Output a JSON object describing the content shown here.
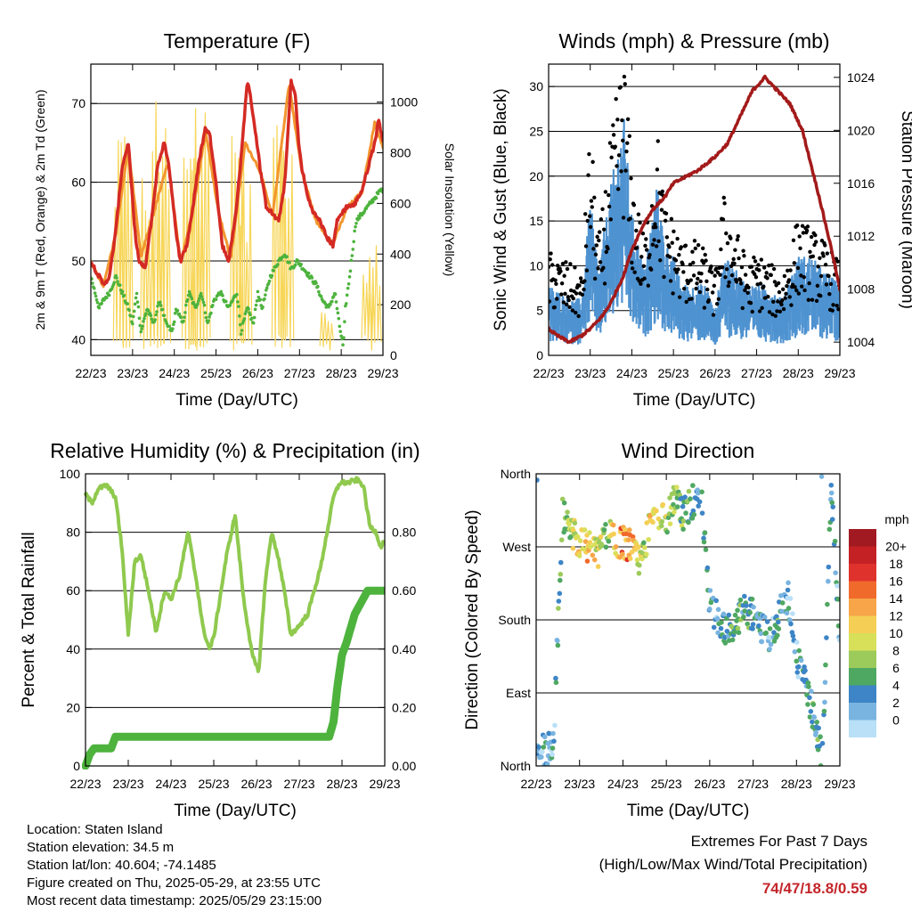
{
  "x_ticks": [
    "22/23",
    "23/23",
    "24/23",
    "25/23",
    "26/23",
    "27/23",
    "28/23",
    "29/23"
  ],
  "xlabel": "Time (Day/UTC)",
  "colors": {
    "t2": "#d42a24",
    "t9": "#f2962e",
    "td": "#4db33d",
    "solar": "#f7d659",
    "wind": "#4f93d1",
    "gust": "#000000",
    "pressure": "#a31a1a",
    "rh": "#8fc94e",
    "precip": "#4db33d"
  },
  "chart_data": [
    {
      "id": "temperature",
      "type": "line",
      "title": "Temperature (F)",
      "xlabel": "Time (Day/UTC)",
      "ylabel": "2m & 9m T (Red, Orange) & 2m Td (Green)",
      "ylabel_right": "Solar Insolation (Yellow)",
      "ylim": [
        38,
        75
      ],
      "yticks": [
        40,
        50,
        60,
        70
      ],
      "ylim_right": [
        0,
        1150
      ],
      "yticks_right": [
        0,
        200,
        400,
        600,
        800,
        1000
      ],
      "x_days": [
        0,
        1,
        2,
        3,
        4,
        5,
        6,
        7
      ],
      "series": [
        {
          "key": "t2",
          "x": [
            0,
            0.15,
            0.3,
            0.45,
            0.6,
            0.75,
            0.9,
            0.98,
            1.05,
            1.15,
            1.3,
            1.45,
            1.6,
            1.75,
            1.85,
            1.98,
            2.05,
            2.15,
            2.3,
            2.45,
            2.6,
            2.75,
            2.85,
            2.98,
            3.05,
            3.15,
            3.3,
            3.45,
            3.6,
            3.75,
            3.85,
            3.98,
            4.05,
            4.2,
            4.35,
            4.5,
            4.65,
            4.8,
            4.9,
            4.98,
            5.05,
            5.2,
            5.35,
            5.5,
            5.65,
            5.8,
            5.9,
            6.0,
            6.15,
            6.3,
            6.5,
            6.65,
            6.8,
            6.9,
            7.0
          ],
          "values": [
            50,
            48.5,
            47,
            48,
            54,
            62,
            65,
            59,
            54,
            50,
            49,
            55,
            62,
            65,
            63,
            57,
            53,
            50,
            52,
            57,
            63,
            67,
            66,
            61,
            57,
            52,
            50,
            55,
            63,
            73,
            70,
            65,
            62,
            57,
            56,
            55,
            60,
            73,
            71,
            65,
            62,
            58,
            56,
            55,
            53,
            52,
            55,
            56,
            57,
            57,
            59,
            62,
            65,
            68,
            65
          ]
        },
        {
          "key": "t9",
          "x": [
            0,
            0.3,
            0.6,
            0.9,
            1.2,
            1.5,
            1.85,
            2.15,
            2.45,
            2.75,
            3.05,
            3.35,
            3.7,
            4.05,
            4.35,
            4.75,
            5.05,
            5.4,
            5.8,
            6.15,
            6.5,
            6.8,
            7.0
          ],
          "values": [
            49.8,
            46.8,
            53.5,
            64.5,
            50.5,
            56,
            62.5,
            49.8,
            56.5,
            66.5,
            56.5,
            50.2,
            65,
            61.5,
            55.5,
            72.5,
            61.5,
            55,
            52.2,
            56.8,
            58.8,
            67.5,
            64.5
          ]
        },
        {
          "key": "td",
          "x": [
            0,
            0.1,
            0.2,
            0.3,
            0.45,
            0.6,
            0.75,
            0.9,
            1.0,
            1.1,
            1.2,
            1.35,
            1.5,
            1.65,
            1.8,
            1.95,
            2.05,
            2.2,
            2.35,
            2.5,
            2.65,
            2.8,
            2.95,
            3.1,
            3.3,
            3.5,
            3.6,
            3.75,
            3.9,
            4.0,
            4.1,
            4.3,
            4.5,
            4.65,
            4.8,
            4.95,
            5.1,
            5.25,
            5.4,
            5.55,
            5.7,
            5.85,
            5.95,
            6.05,
            6.1,
            6.2,
            6.35,
            6.5,
            6.65,
            6.8,
            6.95,
            7.0
          ],
          "values": [
            48,
            46,
            44,
            45,
            46,
            48,
            46,
            44,
            42,
            46,
            41,
            44,
            42,
            45,
            42,
            41,
            44,
            42,
            46,
            44,
            46,
            42,
            45,
            46,
            44,
            46,
            41,
            44,
            42,
            46,
            44,
            48,
            50,
            51,
            49,
            50,
            49,
            48,
            47,
            45,
            44,
            46,
            42,
            39,
            44,
            48,
            55,
            56,
            57,
            58,
            59,
            59
          ]
        },
        {
          "key": "solar",
          "axis": "right",
          "peaks": [
            [
              0.7,
              850
            ],
            [
              0.85,
              950
            ],
            [
              1.35,
              750
            ],
            [
              1.6,
              1090
            ],
            [
              1.75,
              950
            ],
            [
              2.35,
              900
            ],
            [
              2.55,
              1000
            ],
            [
              2.7,
              1050
            ],
            [
              3.5,
              1000
            ],
            [
              3.7,
              800
            ],
            [
              4.5,
              1000
            ],
            [
              4.7,
              1050
            ],
            [
              5.65,
              180
            ],
            [
              6.65,
              350
            ],
            [
              6.8,
              450
            ]
          ]
        }
      ]
    },
    {
      "id": "wind",
      "type": "scatter",
      "title": "Winds (mph) & Pressure (mb)",
      "xlabel": "Time (Day/UTC)",
      "ylabel": "Sonic Wind & Gust (Blue, Black)",
      "ylabel_right": "Station Pressure (Maroon)",
      "ylim": [
        0,
        32.5
      ],
      "yticks": [
        0,
        5,
        10,
        15,
        20,
        25,
        30
      ],
      "ylim_right": [
        1003,
        1025
      ],
      "yticks_right": [
        1004,
        1008,
        1012,
        1016,
        1020,
        1024
      ],
      "series": [
        {
          "key": "gust",
          "x": [
            0,
            0.5,
            0.8,
            1.0,
            1.2,
            1.5,
            1.8,
            2.0,
            2.3,
            2.6,
            2.8,
            3.0,
            3.2,
            3.5,
            3.8,
            4.0,
            4.2,
            4.5,
            4.8,
            5.0,
            5.3,
            5.6,
            6.0,
            6.3,
            6.6,
            7.0
          ],
          "values": [
            9,
            8,
            7,
            20,
            10,
            19,
            27,
            16,
            10,
            20,
            13,
            12,
            10,
            10,
            9,
            7,
            14,
            11,
            8,
            9,
            8,
            7,
            12,
            11,
            10,
            8
          ]
        },
        {
          "key": "wind",
          "x": [
            0,
            0.5,
            0.8,
            1.0,
            1.2,
            1.5,
            1.8,
            2.0,
            2.3,
            2.6,
            2.8,
            3.0,
            3.2,
            3.5,
            3.8,
            4.0,
            4.2,
            4.5,
            4.8,
            5.0,
            5.3,
            5.6,
            6.0,
            6.3,
            6.6,
            7.0
          ],
          "values": [
            5,
            4,
            4,
            11,
            6,
            12,
            17,
            10,
            6,
            12,
            8,
            7,
            5,
            5,
            5,
            3,
            7,
            6,
            5,
            5,
            5,
            4,
            7,
            7,
            6,
            5
          ]
        },
        {
          "key": "pressure",
          "axis": "right",
          "x": [
            0,
            0.2,
            0.5,
            0.8,
            1.0,
            1.3,
            1.5,
            1.8,
            2.0,
            2.3,
            2.5,
            2.8,
            3.0,
            3.3,
            3.6,
            4.0,
            4.3,
            4.6,
            4.9,
            5.2,
            5.5,
            5.8,
            6.1,
            6.5,
            6.8,
            7.0
          ],
          "values": [
            1005,
            1004.5,
            1004,
            1004.5,
            1005,
            1006,
            1007,
            1009,
            1011,
            1013,
            1014,
            1015,
            1016,
            1016.5,
            1017,
            1018,
            1019,
            1021,
            1023,
            1024,
            1023,
            1022,
            1020,
            1015,
            1011,
            1008
          ]
        }
      ]
    },
    {
      "id": "humidity",
      "type": "line",
      "title": "Relative Humidity (%) & Precipitation (in)",
      "xlabel": "Time (Day/UTC)",
      "ylabel": "Percent & Total Rainfall",
      "ylim": [
        0,
        100
      ],
      "yticks": [
        0,
        20,
        40,
        60,
        80,
        100
      ],
      "ylim_right": [
        0,
        1
      ],
      "yticks_right": [
        "0.00",
        "0.20",
        "0.40",
        "0.60",
        "0.80"
      ],
      "series": [
        {
          "key": "rh",
          "x": [
            0,
            0.15,
            0.3,
            0.5,
            0.7,
            0.85,
            1.0,
            1.15,
            1.3,
            1.5,
            1.65,
            1.85,
            2.0,
            2.2,
            2.4,
            2.6,
            2.75,
            2.9,
            3.0,
            3.15,
            3.3,
            3.5,
            3.7,
            3.9,
            4.05,
            4.2,
            4.35,
            4.5,
            4.65,
            4.8,
            5.0,
            5.2,
            5.35,
            5.5,
            5.65,
            5.8,
            5.95,
            6.15,
            6.35,
            6.5,
            6.65,
            6.8,
            6.9,
            7.0
          ],
          "values": [
            93,
            90,
            95,
            96,
            92,
            75,
            45,
            70,
            72,
            58,
            46,
            60,
            57,
            65,
            80,
            63,
            47,
            40,
            44,
            58,
            72,
            86,
            57,
            38,
            32,
            62,
            80,
            72,
            60,
            45,
            48,
            52,
            60,
            68,
            80,
            92,
            97,
            97,
            98,
            96,
            82,
            80,
            75,
            77
          ]
        },
        {
          "key": "precip",
          "axis": "right",
          "x": [
            0,
            0.1,
            0.2,
            0.6,
            0.7,
            1.0,
            2.0,
            3.0,
            4.0,
            5.0,
            5.7,
            5.8,
            5.9,
            6.0,
            6.1,
            6.3,
            6.6,
            7.0
          ],
          "values": [
            0,
            0.04,
            0.06,
            0.06,
            0.1,
            0.1,
            0.1,
            0.1,
            0.1,
            0.1,
            0.1,
            0.15,
            0.28,
            0.38,
            0.42,
            0.52,
            0.6,
            0.6
          ]
        }
      ]
    },
    {
      "id": "direction",
      "type": "scatter",
      "title": "Wind Direction",
      "xlabel": "Time (Day/UTC)",
      "ylabel": "Direction (Colored By Speed)",
      "ylim": [
        0,
        360
      ],
      "yticks": [
        "North",
        "East",
        "South",
        "West",
        "North"
      ],
      "colorbar": {
        "title": "mph",
        "labels": [
          "20+",
          "18",
          "16",
          "14",
          "12",
          "10",
          "8",
          "6",
          "4",
          "2",
          "0"
        ],
        "colors": [
          "#a21a21",
          "#c42125",
          "#e0322c",
          "#f06a2c",
          "#f7a548",
          "#f5cf55",
          "#d8e05a",
          "#9ccb5c",
          "#4fa862",
          "#3d85c6",
          "#79b4e0",
          "#b9e0f7"
        ]
      },
      "x": [
        0.05,
        0.15,
        0.25,
        0.4,
        0.6,
        0.8,
        1.0,
        1.2,
        1.4,
        1.6,
        1.8,
        2.0,
        2.2,
        2.4,
        2.6,
        2.8,
        3.0,
        3.2,
        3.4,
        3.6,
        3.8,
        4.0,
        4.2,
        4.4,
        4.6,
        4.8,
        5.0,
        5.2,
        5.4,
        5.6,
        5.8,
        6.0,
        6.2,
        6.4,
        6.6,
        6.8,
        7.0
      ],
      "values": [
        10,
        18,
        20,
        25,
        310,
        290,
        275,
        270,
        260,
        285,
        280,
        275,
        270,
        255,
        290,
        305,
        300,
        330,
        310,
        325,
        340,
        200,
        180,
        165,
        175,
        195,
        185,
        170,
        160,
        185,
        210,
        135,
        100,
        60,
        10,
        345,
        160
      ],
      "speeds": [
        3,
        4,
        5,
        4,
        7,
        10,
        13,
        14,
        12,
        9,
        13,
        16,
        15,
        10,
        12,
        13,
        10,
        9,
        7,
        6,
        5,
        5,
        4,
        6,
        7,
        6,
        5,
        5,
        4,
        6,
        4,
        4,
        5,
        6,
        5,
        5,
        4
      ]
    }
  ],
  "footer": {
    "location": "Location: Staten Island",
    "elevation": "Station elevation: 34.5 m",
    "latlon": "Station lat/lon: 40.604; -74.1485",
    "created": "Figure created on Thu, 2025-05-29, at 23:55 UTC",
    "timestamp": "Most recent data timestamp: 2025/05/29 23:15:00"
  },
  "extremes": {
    "title": "Extremes For Past 7 Days",
    "subtitle": "(High/Low/Max Wind/Total Precipitation)",
    "values": "74/47/18.8/0.59"
  }
}
